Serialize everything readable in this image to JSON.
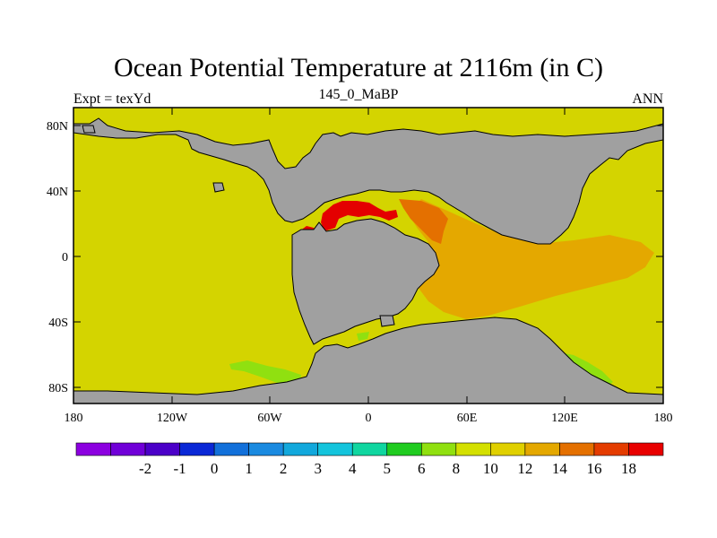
{
  "title": "Ocean Potential Temperature at 2116m (in C)",
  "subtitle_left": "Expt = texYd",
  "subtitle_center": "145_0_MaBP",
  "subtitle_right": "ANN",
  "y_ticks": [
    "80N",
    "40N",
    "0",
    "40S",
    "80S"
  ],
  "x_ticks": [
    "180",
    "120W",
    "60W",
    "0",
    "60E",
    "120E",
    "180"
  ],
  "colorbar": {
    "colors": [
      "#8c00e0",
      "#7000d8",
      "#4b00c8",
      "#0a28d6",
      "#1270da",
      "#1a8ae0",
      "#12a8dc",
      "#14c4dc",
      "#10d6a0",
      "#20cc20",
      "#90e010",
      "#d4e000",
      "#e0d000",
      "#e4a800",
      "#e47000",
      "#e43c00",
      "#e80000"
    ],
    "labels": [
      "-2",
      "-1",
      "0",
      "1",
      "2",
      "3",
      "4",
      "5",
      "6",
      "8",
      "10",
      "12",
      "14",
      "16",
      "18"
    ]
  },
  "colors": {
    "land": "#a0a0a0",
    "ocean_main": "#d4d400",
    "tethys_warm": "#e4a800",
    "tethys_hot": "#e47000",
    "hot_spots": "#e40000",
    "cool_patch": "#90e010"
  }
}
